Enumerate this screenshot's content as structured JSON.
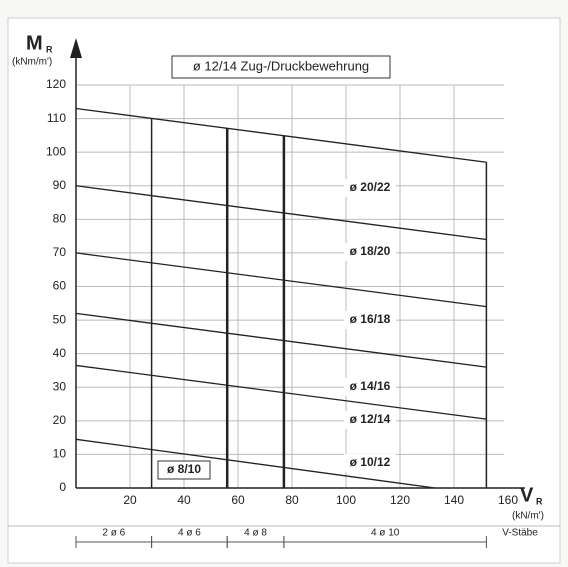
{
  "chart_data": {
    "type": "line",
    "title": "ø 12/14  Zug-/Druckbewehrung",
    "y_label": "M",
    "y_label_sub": "R",
    "y_unit": "(kNm/m')",
    "x_label": "V",
    "x_label_sub": "R",
    "x_unit": "(kN/m')",
    "xlim": [
      0,
      160
    ],
    "ylim": [
      0,
      120
    ],
    "xticks": [
      20,
      40,
      60,
      80,
      100,
      120,
      140,
      160
    ],
    "yticks": [
      0,
      10,
      20,
      30,
      40,
      50,
      60,
      70,
      80,
      90,
      100,
      110,
      120
    ],
    "grid": true,
    "series": [
      {
        "color": "#222",
        "x": [
          0,
          152
        ],
        "values": [
          113,
          97
        ]
      },
      {
        "color": "#222",
        "x": [
          0,
          152
        ],
        "values": [
          90,
          74
        ]
      },
      {
        "color": "#222",
        "x": [
          0,
          152
        ],
        "values": [
          70,
          54
        ]
      },
      {
        "color": "#222",
        "x": [
          0,
          152
        ],
        "values": [
          52,
          36
        ]
      },
      {
        "color": "#222",
        "x": [
          0,
          152
        ],
        "values": [
          36.5,
          20.5
        ]
      },
      {
        "color": "#222",
        "x": [
          0,
          133
        ],
        "values": [
          14.5,
          0
        ]
      }
    ],
    "region_labels": [
      "ø 20/22",
      "ø 18/20",
      "ø 16/18",
      "ø 14/16",
      "ø 12/14",
      "ø 10/12",
      "ø 8/10"
    ],
    "bar_change_x": [
      28,
      56,
      77,
      152
    ],
    "rebar_zones": [
      {
        "label": "2 ø 6",
        "from": 0,
        "to": 28
      },
      {
        "label": "4 ø 6",
        "from": 28,
        "to": 56
      },
      {
        "label": "4 ø 8",
        "from": 56,
        "to": 77
      },
      {
        "label": "4 ø 10",
        "from": 77,
        "to": 152
      }
    ],
    "rebar_end_label": "V-Stäbe"
  }
}
